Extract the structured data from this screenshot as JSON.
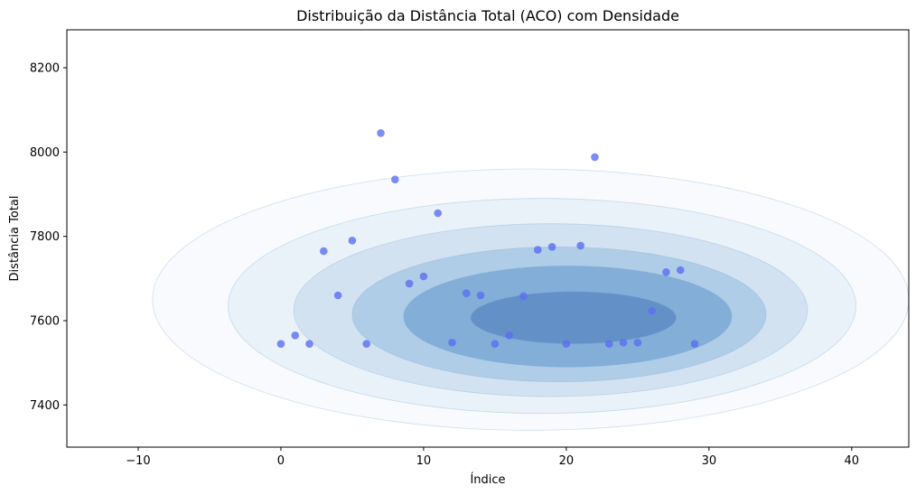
{
  "chart_data": {
    "type": "scatter",
    "title": "Distribuição da Distância Total (ACO) com Densidade",
    "xlabel": "Índice",
    "ylabel": "Distância Total",
    "xlim": [
      -15,
      44
    ],
    "ylim": [
      7300,
      8290
    ],
    "xticks": [
      -10,
      0,
      10,
      20,
      30,
      40
    ],
    "yticks": [
      7400,
      7600,
      7800,
      8000,
      8200
    ],
    "grid": false,
    "point_color": "#5a6ff0",
    "density_colormap": [
      "#f5f8fc",
      "#e2edf6",
      "#c7dcee",
      "#9fc4e2",
      "#6fa1d2",
      "#3d6fb4"
    ],
    "x": [
      0,
      1,
      2,
      3,
      4,
      5,
      6,
      7,
      8,
      9,
      10,
      11,
      12,
      13,
      14,
      15,
      16,
      17,
      18,
      19,
      20,
      21,
      22,
      23,
      24,
      25,
      26,
      27,
      28,
      29
    ],
    "y": [
      7545,
      7565,
      7545,
      7765,
      7660,
      7790,
      7545,
      8045,
      7935,
      7688,
      7705,
      7855,
      7548,
      7665,
      7660,
      7545,
      7565,
      7658,
      7768,
      7775,
      7545,
      7778,
      7988,
      7545,
      7548,
      7548,
      7623,
      7715,
      7720,
      7545
    ]
  }
}
